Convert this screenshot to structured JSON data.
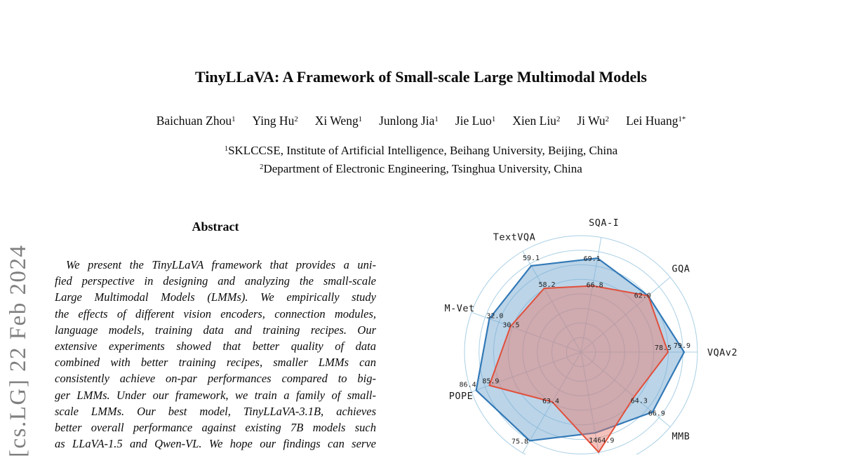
{
  "arxiv_banner": {
    "text": "[cs.LG] 22 Feb 2024",
    "color": "#7f7f7f"
  },
  "paper": {
    "title": "TinyLLaVA: A Framework of Small-scale Large Multimodal Models",
    "authors": [
      {
        "name": "Baichuan Zhou",
        "sup": "1"
      },
      {
        "name": "Ying Hu",
        "sup": "2"
      },
      {
        "name": "Xi Weng",
        "sup": "1"
      },
      {
        "name": "Junlong Jia",
        "sup": "1"
      },
      {
        "name": "Jie Luo",
        "sup": "1"
      },
      {
        "name": "Xien Liu",
        "sup": "2"
      },
      {
        "name": "Ji Wu",
        "sup": "2"
      },
      {
        "name": "Lei Huang",
        "sup": "1*"
      }
    ],
    "affiliations": [
      {
        "sup": "1",
        "text": "SKLCCSE, Institute of Artificial Intelligence, Beihang University, Beijing, China"
      },
      {
        "sup": "2",
        "text": "Department of Electronic Engineering, Tsinghua University, China"
      }
    ],
    "abstract_heading": "Abstract",
    "abstract_lines": [
      "We present the TinyLLaVA framework that provides a uni-",
      "fied perspective in designing and analyzing the small-scale",
      "Large Multimodal Models (LMMs). We empirically study",
      "the effects of different vision encoders, connection modules,",
      "language models, training data and training recipes. Our",
      "extensive experiments showed that better quality of data",
      "combined with better training recipes, smaller LMMs can",
      "consistently achieve on-par performances compared to big-",
      "ger LMMs. Under our framework, we train a family of small-",
      "scale LMMs. Our best model, TinyLLaVA-3.1B, achieves",
      "better overall performance against existing 7B models such",
      "as LLaVA-1.5 and Qwen-VL. We hope our findings can serve"
    ]
  },
  "chart_data": {
    "type": "radar",
    "title": "",
    "legend": "not visible (cropped)",
    "grid": true,
    "rings": 8,
    "outer_radius": 166,
    "center": [
      828,
      502
    ],
    "colors": {
      "grid": "#a9cfe5",
      "blue_line": "#3279b7",
      "blue_fill": "rgba(120,170,210,0.50)",
      "red_line": "#e14f3b",
      "red_fill": "rgba(232,120,104,0.45)"
    },
    "axes": [
      {
        "label": "SQA-I",
        "angle": 80,
        "blue": "69.1",
        "red": "66.8",
        "r_blue": 136,
        "r_red": 96
      },
      {
        "label": "GQA",
        "angle": 40,
        "blue": "62.0",
        "red": "",
        "r_blue": 125,
        "r_red": 125
      },
      {
        "label": "VQAv2",
        "angle": 0,
        "blue": "79.9",
        "red": "78.5",
        "r_blue": 147,
        "r_red": 124
      },
      {
        "label": "MMB",
        "angle": -40,
        "blue": "66.9",
        "red": "64.3",
        "r_blue": 133,
        "r_red": 99
      },
      {
        "label": "",
        "angle": -80,
        "blue": "1464.9",
        "red": "1510.7",
        "r_blue": 117,
        "r_red": 145
      },
      {
        "label": "",
        "angle": -120,
        "blue": "75.8",
        "red": "63.4",
        "r_blue": 146,
        "r_red": 82
      },
      {
        "label": "POPE",
        "angle": -160,
        "blue": "86.4",
        "red": "85.9",
        "r_blue": 159,
        "r_red": 139
      },
      {
        "label": "M-Vet",
        "angle": 160,
        "blue": "32.0",
        "red": "30.5",
        "r_blue": 139,
        "r_red": 107
      },
      {
        "label": "TextVQA",
        "angle": 120,
        "blue": "59.1",
        "red": "58.2",
        "r_blue": 142,
        "r_red": 105
      }
    ]
  }
}
